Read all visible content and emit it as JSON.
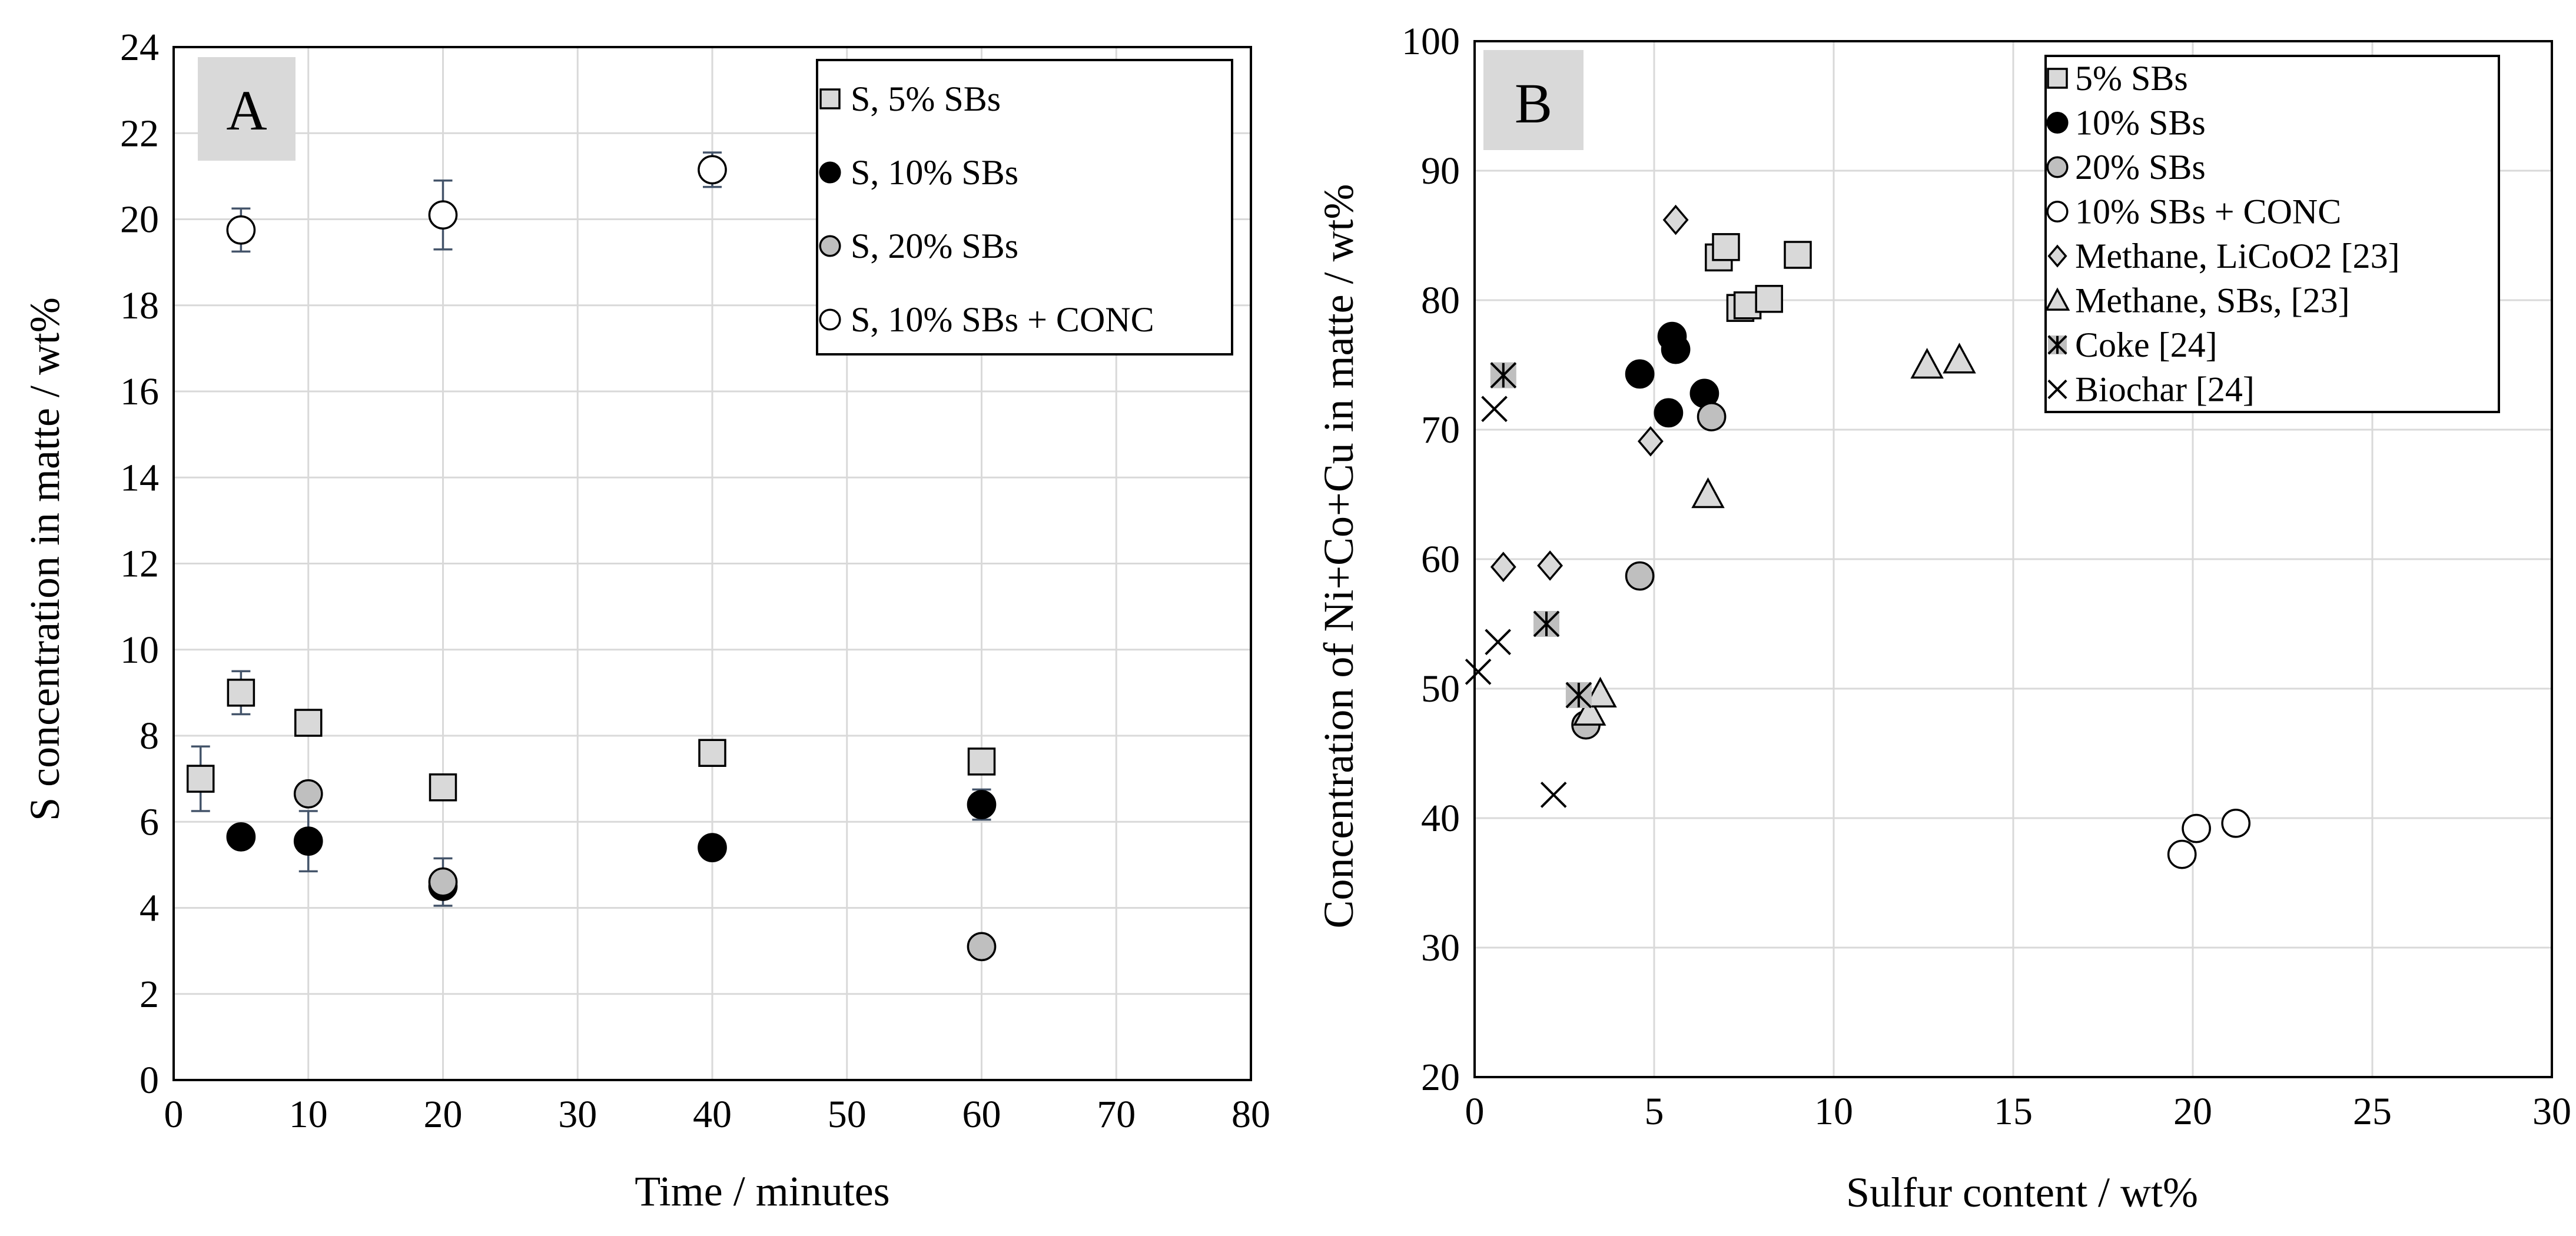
{
  "chart_data": [
    {
      "type": "scatter",
      "panel_label": "A",
      "xlabel": "Time / minutes",
      "ylabel": "S concentration in matte / wt%",
      "xlim": [
        0,
        80
      ],
      "ylim": [
        0,
        24
      ],
      "xticks": [
        "0",
        "10",
        "20",
        "30",
        "40",
        "50",
        "60",
        "70",
        "80"
      ],
      "yticks": [
        "0",
        "2",
        "4",
        "6",
        "8",
        "10",
        "12",
        "14",
        "16",
        "18",
        "20",
        "22",
        "24"
      ],
      "grid": true,
      "legend_position": "top-right",
      "series": [
        {
          "name": "S, 5% SBs",
          "marker": "square",
          "fill": "#d9d9d9",
          "points": [
            [
              2,
              7.0
            ],
            [
              5,
              9.0
            ],
            [
              10,
              8.3
            ],
            [
              20,
              6.8
            ],
            [
              40,
              7.6
            ],
            [
              60,
              7.4
            ]
          ],
          "errors": [
            0.75,
            0.5,
            0,
            0,
            0,
            0
          ]
        },
        {
          "name": "S, 10% SBs",
          "marker": "circle",
          "fill": "#000000",
          "points": [
            [
              5,
              5.65
            ],
            [
              10,
              5.55
            ],
            [
              20,
              4.5
            ],
            [
              40,
              5.4
            ],
            [
              60,
              6.4
            ]
          ],
          "errors": [
            0,
            0.7,
            0,
            0,
            0.35
          ]
        },
        {
          "name": "S, 20% SBs",
          "marker": "circle",
          "fill": "#bfbfbf",
          "points": [
            [
              10,
              6.65
            ],
            [
              20,
              4.6
            ],
            [
              60,
              3.1
            ]
          ],
          "errors": [
            0,
            0.55,
            0
          ]
        },
        {
          "name": "S, 10% SBs + CONC",
          "marker": "circle",
          "fill": "#ffffff",
          "points": [
            [
              5,
              19.75
            ],
            [
              20,
              20.1
            ],
            [
              40,
              21.15
            ]
          ],
          "errors": [
            0.5,
            0.8,
            0.4
          ]
        }
      ]
    },
    {
      "type": "scatter",
      "panel_label": "B",
      "xlabel": "Sulfur content / wt%",
      "ylabel": "Concentration of  Ni+Co+Cu in matte / wt%",
      "xlim": [
        0,
        30
      ],
      "ylim": [
        20,
        100
      ],
      "xticks": [
        "0",
        "5",
        "10",
        "15",
        "20",
        "25",
        "30"
      ],
      "yticks": [
        "20",
        "30",
        "40",
        "50",
        "60",
        "70",
        "80",
        "90",
        "100"
      ],
      "grid": true,
      "legend_position": "top-right",
      "series": [
        {
          "name": "5% SBs",
          "marker": "square",
          "fill": "#d9d9d9",
          "points": [
            [
              6.8,
              83.3
            ],
            [
              7.0,
              84.1
            ],
            [
              7.4,
              79.4
            ],
            [
              7.6,
              79.6
            ],
            [
              8.2,
              80.1
            ],
            [
              9.0,
              83.5
            ]
          ]
        },
        {
          "name": "10% SBs",
          "marker": "circle",
          "fill": "#000000",
          "points": [
            [
              4.6,
              74.3
            ],
            [
              5.4,
              71.3
            ],
            [
              5.5,
              77.2
            ],
            [
              5.6,
              76.2
            ],
            [
              6.4,
              72.8
            ]
          ]
        },
        {
          "name": "20% SBs",
          "marker": "circle",
          "fill": "#bfbfbf",
          "points": [
            [
              3.1,
              47.2
            ],
            [
              4.6,
              58.7
            ],
            [
              6.6,
              71.0
            ]
          ]
        },
        {
          "name": "10% SBs + CONC",
          "marker": "circle",
          "fill": "#ffffff",
          "points": [
            [
              19.7,
              37.2
            ],
            [
              20.1,
              39.2
            ],
            [
              21.2,
              39.6
            ]
          ]
        },
        {
          "name": "Methane, LiCoO2 [23]",
          "marker": "diamond",
          "fill": "#d9d9d9",
          "points": [
            [
              0.8,
              59.4
            ],
            [
              2.1,
              59.5
            ],
            [
              4.9,
              69.1
            ],
            [
              5.6,
              86.2
            ]
          ]
        },
        {
          "name": "Methane, SBs, [23]",
          "marker": "triangle",
          "fill": "#d9d9d9",
          "points": [
            [
              3.2,
              48.2
            ],
            [
              3.5,
              49.6
            ],
            [
              6.5,
              65.0
            ],
            [
              12.6,
              75.0
            ],
            [
              13.5,
              75.4
            ]
          ]
        },
        {
          "name": "Coke [24]",
          "marker": "asterisk-square",
          "fill": "#bfbfbf",
          "points": [
            [
              0.8,
              74.2
            ],
            [
              2.0,
              55.0
            ],
            [
              2.9,
              49.5
            ]
          ]
        },
        {
          "name": "Biochar [24]",
          "marker": "x",
          "fill": "#000000",
          "points": [
            [
              0.1,
              51.3
            ],
            [
              0.55,
              71.6
            ],
            [
              0.65,
              53.6
            ],
            [
              2.2,
              41.8
            ]
          ]
        }
      ]
    }
  ]
}
